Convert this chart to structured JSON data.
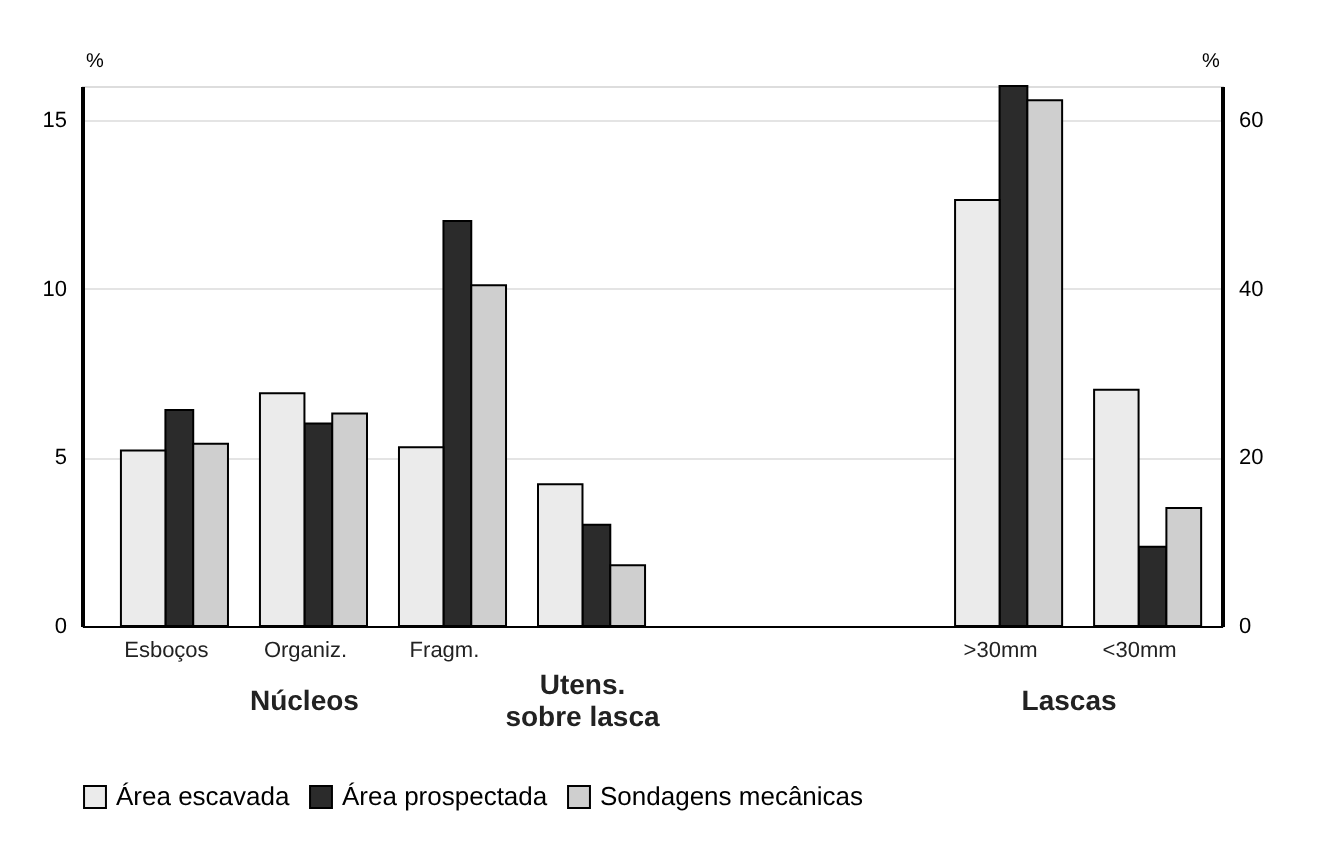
{
  "chart_data": {
    "type": "bar",
    "ylabel": "%",
    "y2label": "%",
    "categories": [
      "Esboços",
      "Organiz.",
      "Fragm.",
      null,
      null,
      null,
      ">30mm",
      "<30mm"
    ],
    "series": [
      {
        "name": "Área escavada",
        "color": "#ebebeb",
        "values": [
          5.2,
          6.9,
          5.3,
          4.2,
          null,
          null,
          null,
          null
        ]
      },
      {
        "name": "Área prospectada",
        "color": "#2b2b2b",
        "values": [
          6.4,
          6.0,
          12.0,
          3.0,
          null,
          null,
          null,
          null
        ]
      },
      {
        "name": "Sondagens mecânicas",
        "color": "#cfcfcf",
        "values": [
          5.4,
          6.3,
          10.1,
          1.8,
          null,
          null,
          null,
          null
        ]
      },
      {
        "color": "#ebebeb",
        "axis": "y2",
        "values": [
          null,
          null,
          null,
          null,
          null,
          null,
          50.5,
          28
        ]
      },
      {
        "color": "#2b2b2b",
        "axis": "y2",
        "values": [
          null,
          null,
          null,
          null,
          null,
          null,
          64,
          9.4
        ]
      },
      {
        "color": "#cfcfcf",
        "axis": "y2",
        "values": [
          null,
          null,
          null,
          null,
          null,
          null,
          62.3,
          14
        ]
      }
    ],
    "ylim": [
      0,
      16
    ],
    "yticks": [
      0,
      5,
      10,
      15
    ],
    "y2lim": [
      0,
      64
    ],
    "y2ticks": [
      0,
      20,
      40,
      60
    ],
    "annotations": [
      "Núcleos",
      "Utens.\nsobre lasca",
      "Lascas"
    ],
    "grid": "y",
    "legend": "bottom"
  }
}
